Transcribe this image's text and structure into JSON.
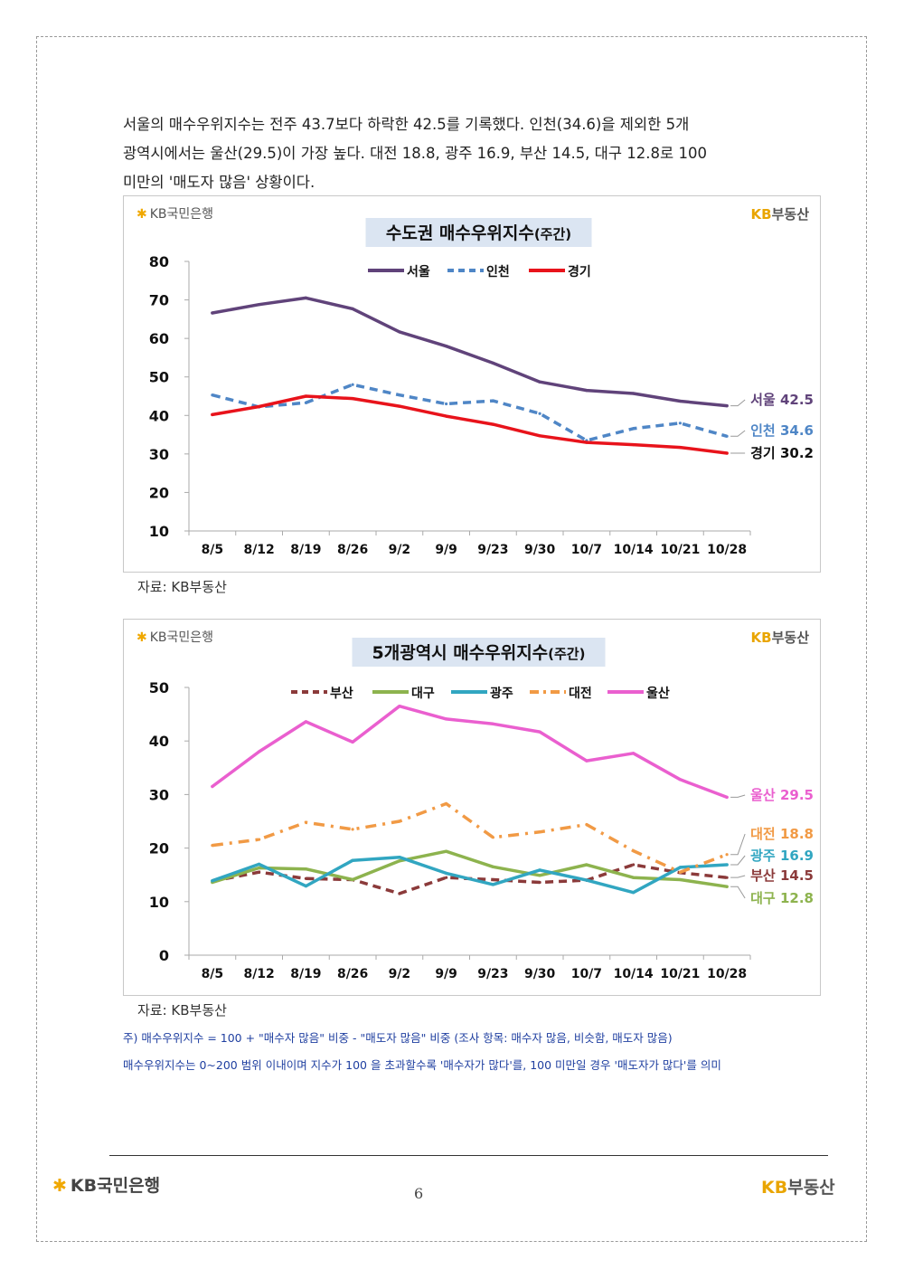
{
  "intro": {
    "line1": "서울의 매수우위지수는 전주 43.7보다 하락한 42.5를 기록했다. 인천(34.6)을 제외한 5개",
    "line2": "광역시에서는 울산(29.5)이 가장 높다. 대전 18.8, 광주 16.9, 부산 14.5, 대구 12.8로 100",
    "line3": "미만의 '매도자 많음' 상황이다."
  },
  "logos": {
    "kb_bank": "KB국민은행",
    "kb_realestate_prefix": "KB",
    "kb_realestate_suffix": "부동산"
  },
  "colors": {
    "seoul": "#60437a",
    "incheon": "#4f86c6",
    "gyeonggi": "#e8131b",
    "busan": "#8b3a3a",
    "daegu": "#8db34e",
    "gwangju": "#31a6c1",
    "daejeon": "#f19a45",
    "ulsan": "#ea5fcf",
    "title_bg": "#dbe5f2",
    "note": "#1f3fa0"
  },
  "chart_data": [
    {
      "type": "line",
      "title": "수도권 매수우위지수(주간)",
      "title_main": "수도권 매수우위지수",
      "title_suffix": "(주간)",
      "categories": [
        "8/5",
        "8/12",
        "8/19",
        "8/26",
        "9/2",
        "9/9",
        "9/23",
        "9/30",
        "10/7",
        "10/14",
        "10/21",
        "10/28"
      ],
      "ylim": [
        10,
        80
      ],
      "yticks": [
        10,
        20,
        30,
        40,
        50,
        60,
        70,
        80
      ],
      "legend_position": "top",
      "series": [
        {
          "name": "서울",
          "style": "solid",
          "values": [
            66.6,
            68.8,
            70.5,
            67.7,
            61.7,
            58.0,
            53.6,
            48.7,
            46.5,
            45.7,
            43.7,
            42.5
          ],
          "end_label": "서울 42.5"
        },
        {
          "name": "인천",
          "style": "dashed",
          "values": [
            45.3,
            42.2,
            43.3,
            48.0,
            45.3,
            43.0,
            43.8,
            40.5,
            33.5,
            36.6,
            38.0,
            34.6
          ],
          "end_label": "인천 34.6"
        },
        {
          "name": "경기",
          "style": "solid",
          "values": [
            40.2,
            42.3,
            45.0,
            44.4,
            42.4,
            39.8,
            37.7,
            34.7,
            33.0,
            32.4,
            31.7,
            30.2
          ],
          "end_label": "경기 30.2"
        }
      ]
    },
    {
      "type": "line",
      "title": "5개광역시 매수우위지수(주간)",
      "title_main": "5개광역시 매수우위지수",
      "title_suffix": "(주간)",
      "categories": [
        "8/5",
        "8/12",
        "8/19",
        "8/26",
        "9/2",
        "9/9",
        "9/23",
        "9/30",
        "10/7",
        "10/14",
        "10/21",
        "10/28"
      ],
      "ylim": [
        0,
        50
      ],
      "yticks": [
        0,
        10,
        20,
        30,
        40,
        50
      ],
      "legend_position": "top",
      "series": [
        {
          "name": "부산",
          "style": "dashed",
          "values": [
            13.8,
            15.5,
            14.3,
            14.1,
            11.5,
            14.5,
            14.1,
            13.6,
            14.0,
            16.9,
            15.4,
            14.5
          ],
          "end_label": "부산 14.5"
        },
        {
          "name": "대구",
          "style": "solid",
          "values": [
            13.6,
            16.3,
            16.1,
            14.1,
            17.6,
            19.4,
            16.5,
            14.9,
            16.9,
            14.5,
            14.1,
            12.8
          ],
          "end_label": "대구 12.8"
        },
        {
          "name": "광주",
          "style": "solid",
          "values": [
            13.9,
            17.0,
            12.9,
            17.7,
            18.3,
            15.3,
            13.2,
            15.9,
            14.0,
            11.7,
            16.4,
            16.9
          ],
          "end_label": "광주 16.9"
        },
        {
          "name": "대전",
          "style": "dashdot",
          "values": [
            20.5,
            21.6,
            24.8,
            23.5,
            25.0,
            28.3,
            22.0,
            23.0,
            24.4,
            19.5,
            15.5,
            18.8
          ],
          "end_label": "대전 18.8"
        },
        {
          "name": "울산",
          "style": "solid",
          "values": [
            31.5,
            38.0,
            43.6,
            39.8,
            46.5,
            44.1,
            43.2,
            41.7,
            36.3,
            37.7,
            32.8,
            29.5
          ],
          "end_label": "울산 29.5"
        }
      ]
    }
  ],
  "sources": {
    "source1": "자료: KB부동산",
    "source2": "자료: KB부동산"
  },
  "notes": {
    "note1": "주) 매수우위지수 = 100 + \"매수자 많음\" 비중 - \"매도자 많음\" 비중  (조사 항목: 매수자 많음, 비슷함, 매도자 많음)",
    "note2": "매수우위지수는 0~200 범위 이내이며 지수가 100 을 초과할수록 '매수자가 많다'를, 100 미만일 경우 '매도자가 많다'를 의미"
  },
  "footer": {
    "page_number": "6"
  }
}
